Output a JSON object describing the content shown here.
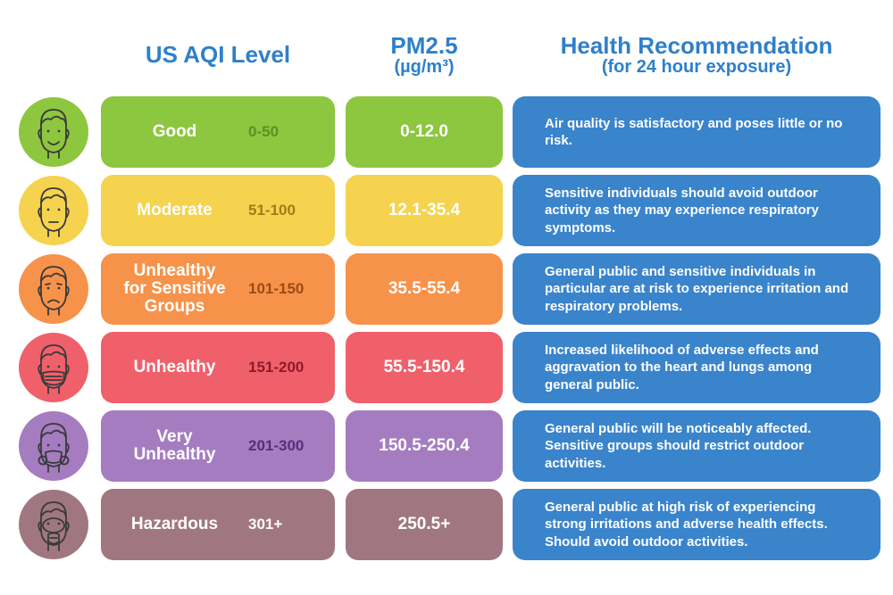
{
  "headers": {
    "aqi": "US AQI Level",
    "pm_line1": "PM2.5",
    "pm_line2": "(µg/m³)",
    "health_line1": "Health Recommendation",
    "health_line2": "(for 24 hour exposure)"
  },
  "recommendation_color": "#3a84cc",
  "rows": [
    {
      "level_lines": [
        "Good"
      ],
      "range": "0-50",
      "pm": "0-12.0",
      "recommendation": "Air quality is satisfactory and poses little or no risk.",
      "color": "#8dc63f",
      "range_color": "#5e8f22",
      "face_icon": "smiling-face-icon"
    },
    {
      "level_lines": [
        "Moderate"
      ],
      "range": "51-100",
      "pm": "12.1-35.4",
      "recommendation": "Sensitive individuals should avoid outdoor activity as they may experience respiratory symptoms.",
      "color": "#f5d34e",
      "range_color": "#9e7d1b",
      "face_icon": "neutral-face-icon"
    },
    {
      "level_lines": [
        "Unhealthy",
        "for Sensitive",
        "Groups"
      ],
      "range": "101-150",
      "pm": "35.5-55.4",
      "recommendation": "General public and sensitive individuals in particular are at risk to experience irritation and respiratory problems.",
      "color": "#f7924a",
      "range_color": "#9c4a14",
      "face_icon": "sad-face-icon"
    },
    {
      "level_lines": [
        "Unhealthy"
      ],
      "range": "151-200",
      "pm": "55.5-150.4",
      "recommendation": "Increased likelihood of adverse effects and aggravation to the heart and lungs among general public.",
      "color": "#f0606b",
      "range_color": "#8f1a26",
      "face_icon": "face-mask-icon"
    },
    {
      "level_lines": [
        "Very",
        "Unhealthy"
      ],
      "range": "201-300",
      "pm": "150.5-250.4",
      "recommendation": "General public will be noticeably affected. Sensitive groups should restrict outdoor activities.",
      "color": "#a57cc0",
      "range_color": "#55307a",
      "face_icon": "respirator-face-icon"
    },
    {
      "level_lines": [
        "Hazardous"
      ],
      "range": "301+",
      "pm": "250.5+",
      "recommendation": "General public at high risk of experiencing strong irritations and adverse health effects. Should avoid outdoor activities.",
      "color": "#a07780",
      "range_color": "#ffffff",
      "face_icon": "gas-mask-face-icon"
    }
  ]
}
